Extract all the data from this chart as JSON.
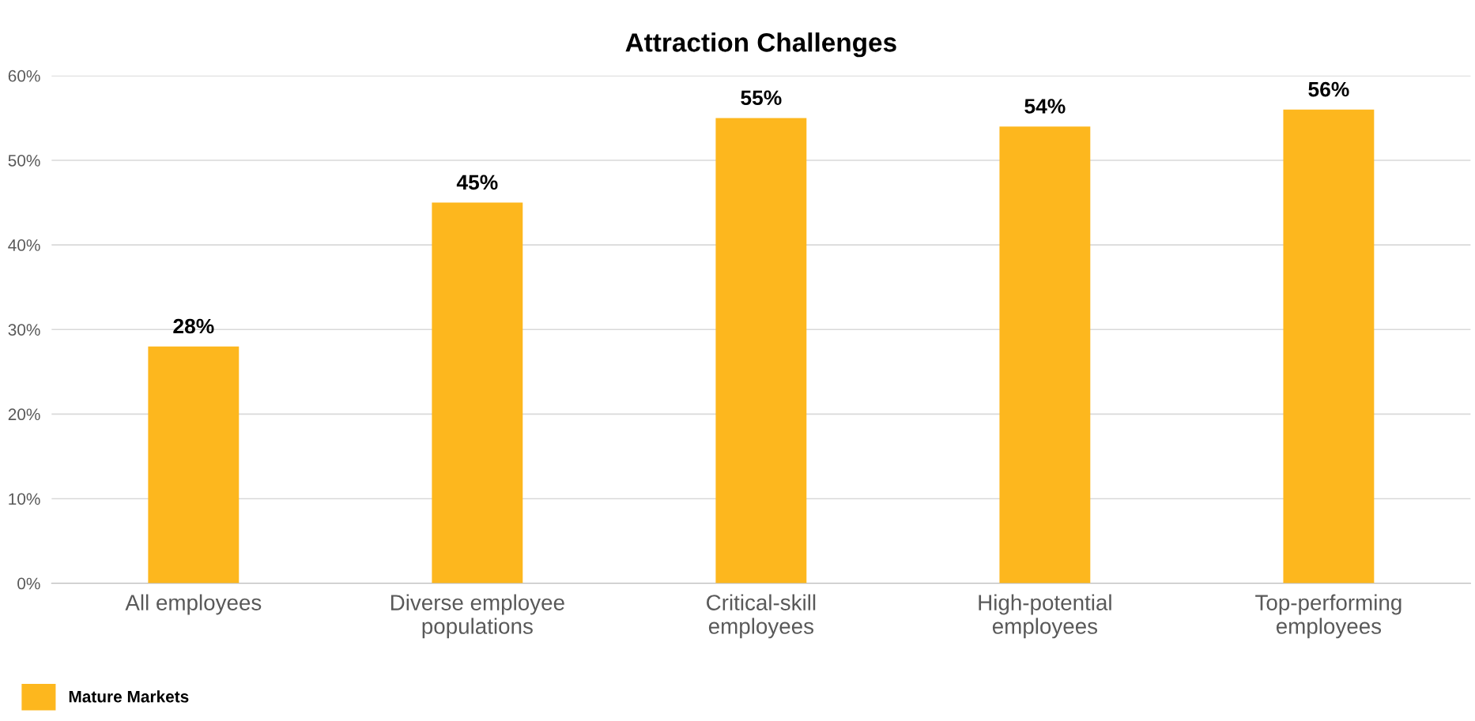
{
  "chart_data": {
    "type": "bar",
    "title": "Attraction Challenges",
    "categories": [
      "All employees",
      "Diverse employee\npopulations",
      "Critical-skill\nemployees",
      "High-potential\nemployees",
      "Top-performing\nemployees"
    ],
    "series": [
      {
        "name": "Mature Markets",
        "color": "#fdb71e",
        "values": [
          28,
          45,
          55,
          54,
          56
        ],
        "value_labels": [
          "28%",
          "45%",
          "55%",
          "54%",
          "56%"
        ]
      }
    ],
    "ylim": [
      0,
      60
    ],
    "yticks": [
      {
        "value": 0,
        "label": "0%"
      },
      {
        "value": 10,
        "label": "10%"
      },
      {
        "value": 20,
        "label": "20%"
      },
      {
        "value": 30,
        "label": "30%"
      },
      {
        "value": 40,
        "label": "40%"
      },
      {
        "value": 50,
        "label": "50%"
      },
      {
        "value": 60,
        "label": "60%"
      }
    ],
    "grid": "y",
    "legend": "bottom left"
  }
}
